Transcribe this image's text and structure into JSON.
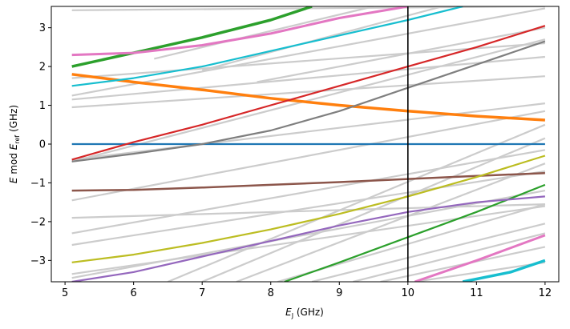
{
  "chart_data": {
    "type": "line",
    "title": "",
    "xlabel": {
      "main": "E",
      "sub": "J",
      "unit": " (GHz)"
    },
    "ylabel": {
      "main": "E",
      "mid": " mod ",
      "main2": "E",
      "sub": "ref",
      "unit": " (GHz)"
    },
    "xlim": [
      4.8,
      12.2
    ],
    "ylim": [
      -3.55,
      3.55
    ],
    "xticks": [
      5,
      6,
      7,
      8,
      9,
      10,
      11,
      12
    ],
    "yticks": [
      -3,
      -2,
      -1,
      0,
      1,
      2,
      3
    ],
    "grid": false,
    "legend": "none",
    "vertical_line": {
      "x": 10.0,
      "color": "#000000"
    },
    "background_series_color": "#cccccc",
    "background_series": [
      [
        [
          5.1,
          -3.45
        ],
        [
          12,
          -1.2
        ]
      ],
      [
        [
          5.1,
          -3.35
        ],
        [
          12,
          -1.6
        ]
      ],
      [
        [
          5.1,
          -2.6
        ],
        [
          12,
          -0.7
        ]
      ],
      [
        [
          5.1,
          -2.3
        ],
        [
          12,
          -0.15
        ]
      ],
      [
        [
          5.1,
          -1.9
        ],
        [
          12,
          -1.55
        ]
      ],
      [
        [
          5.1,
          -1.45
        ],
        [
          12,
          0.85
        ]
      ],
      [
        [
          5.1,
          -0.45
        ],
        [
          12,
          2.7
        ]
      ],
      [
        [
          5.1,
          -0.4
        ],
        [
          12,
          1.05
        ]
      ],
      [
        [
          5.1,
          0.95
        ],
        [
          12,
          1.75
        ]
      ],
      [
        [
          5.1,
          1.15
        ],
        [
          12,
          2.25
        ]
      ],
      [
        [
          5.1,
          1.25
        ],
        [
          12,
          3.5
        ]
      ],
      [
        [
          5.1,
          1.7
        ],
        [
          12,
          2.6
        ]
      ],
      [
        [
          5.1,
          3.45
        ],
        [
          12,
          3.55
        ]
      ],
      [
        [
          6.5,
          -3.55
        ],
        [
          12,
          0.5
        ]
      ],
      [
        [
          7.0,
          -3.55
        ],
        [
          12,
          0.15
        ]
      ],
      [
        [
          7.5,
          -3.55
        ],
        [
          12,
          -0.5
        ]
      ],
      [
        [
          8.1,
          -3.55
        ],
        [
          12,
          -1.55
        ]
      ],
      [
        [
          8.6,
          -3.55
        ],
        [
          12,
          -2.05
        ]
      ],
      [
        [
          9.2,
          -3.55
        ],
        [
          12,
          -2.3
        ]
      ],
      [
        [
          9.6,
          -3.55
        ],
        [
          12,
          -2.65
        ]
      ],
      [
        [
          10.1,
          -3.55
        ],
        [
          12,
          -3.05
        ]
      ],
      [
        [
          6.3,
          2.2
        ],
        [
          9.5,
          3.55
        ]
      ],
      [
        [
          7.0,
          1.9
        ],
        [
          10.5,
          3.55
        ]
      ],
      [
        [
          7.8,
          1.6
        ],
        [
          12,
          3.0
        ]
      ]
    ],
    "series": [
      {
        "color": "#1f77b4",
        "width": 2.2,
        "points": [
          [
            5.1,
            0.0
          ],
          [
            12,
            0.0
          ]
        ]
      },
      {
        "color": "#ff7f0e",
        "width": 3.5,
        "points": [
          [
            5.1,
            1.8
          ],
          [
            6,
            1.6
          ],
          [
            7,
            1.4
          ],
          [
            8,
            1.18
          ],
          [
            9,
            1.0
          ],
          [
            10,
            0.85
          ],
          [
            11,
            0.72
          ],
          [
            12,
            0.62
          ]
        ]
      },
      {
        "color": "#2ca02c",
        "width": 3.5,
        "points": [
          [
            5.1,
            2.0
          ],
          [
            6,
            2.35
          ],
          [
            7,
            2.75
          ],
          [
            8,
            3.2
          ],
          [
            8.6,
            3.55
          ]
        ]
      },
      {
        "color": "#2ca02c",
        "width": 2.2,
        "points": [
          [
            8.2,
            -3.55
          ],
          [
            9,
            -3.05
          ],
          [
            10,
            -2.4
          ],
          [
            11,
            -1.75
          ],
          [
            12,
            -1.05
          ]
        ]
      },
      {
        "color": "#d62728",
        "width": 2.2,
        "points": [
          [
            5.1,
            -0.4
          ],
          [
            6,
            0.05
          ],
          [
            7,
            0.5
          ],
          [
            8,
            1.0
          ],
          [
            9,
            1.5
          ],
          [
            10,
            2.0
          ],
          [
            11,
            2.5
          ],
          [
            12,
            3.05
          ]
        ]
      },
      {
        "color": "#7f7f7f",
        "width": 2.2,
        "points": [
          [
            5.1,
            -0.45
          ],
          [
            6,
            -0.25
          ],
          [
            7,
            0.0
          ],
          [
            8,
            0.35
          ],
          [
            9,
            0.85
          ],
          [
            10,
            1.45
          ],
          [
            11,
            2.05
          ],
          [
            12,
            2.65
          ]
        ]
      },
      {
        "color": "#e377c2",
        "width": 3.0,
        "points": [
          [
            5.1,
            2.3
          ],
          [
            6,
            2.35
          ],
          [
            7,
            2.55
          ],
          [
            8,
            2.85
          ],
          [
            9,
            3.25
          ],
          [
            10,
            3.55
          ]
        ]
      },
      {
        "color": "#e377c2",
        "width": 3.0,
        "points": [
          [
            10.1,
            -3.55
          ],
          [
            11,
            -3.0
          ],
          [
            12,
            -2.35
          ]
        ]
      },
      {
        "color": "#17becf",
        "width": 2.2,
        "points": [
          [
            5.1,
            1.5
          ],
          [
            6,
            1.7
          ],
          [
            7,
            2.0
          ],
          [
            8,
            2.4
          ],
          [
            9,
            2.8
          ],
          [
            10,
            3.2
          ],
          [
            10.8,
            3.55
          ]
        ]
      },
      {
        "color": "#17becf",
        "width": 3.5,
        "points": [
          [
            10.8,
            -3.55
          ],
          [
            11.5,
            -3.3
          ],
          [
            12,
            -3.0
          ]
        ]
      },
      {
        "color": "#8c564b",
        "width": 2.5,
        "points": [
          [
            5.1,
            -1.2
          ],
          [
            6,
            -1.18
          ],
          [
            7,
            -1.12
          ],
          [
            8,
            -1.05
          ],
          [
            9,
            -0.98
          ],
          [
            10,
            -0.9
          ],
          [
            11,
            -0.82
          ],
          [
            12,
            -0.75
          ]
        ]
      },
      {
        "color": "#bcbd22",
        "width": 2.2,
        "points": [
          [
            5.1,
            -3.05
          ],
          [
            6,
            -2.85
          ],
          [
            7,
            -2.55
          ],
          [
            8,
            -2.2
          ],
          [
            9,
            -1.8
          ],
          [
            10,
            -1.35
          ],
          [
            11,
            -0.85
          ],
          [
            12,
            -0.3
          ]
        ]
      },
      {
        "color": "#9467bd",
        "width": 2.2,
        "points": [
          [
            5.1,
            -3.55
          ],
          [
            6,
            -3.3
          ],
          [
            7,
            -2.9
          ],
          [
            8,
            -2.5
          ],
          [
            9,
            -2.1
          ],
          [
            10,
            -1.75
          ],
          [
            11,
            -1.5
          ],
          [
            12,
            -1.35
          ]
        ]
      }
    ]
  }
}
